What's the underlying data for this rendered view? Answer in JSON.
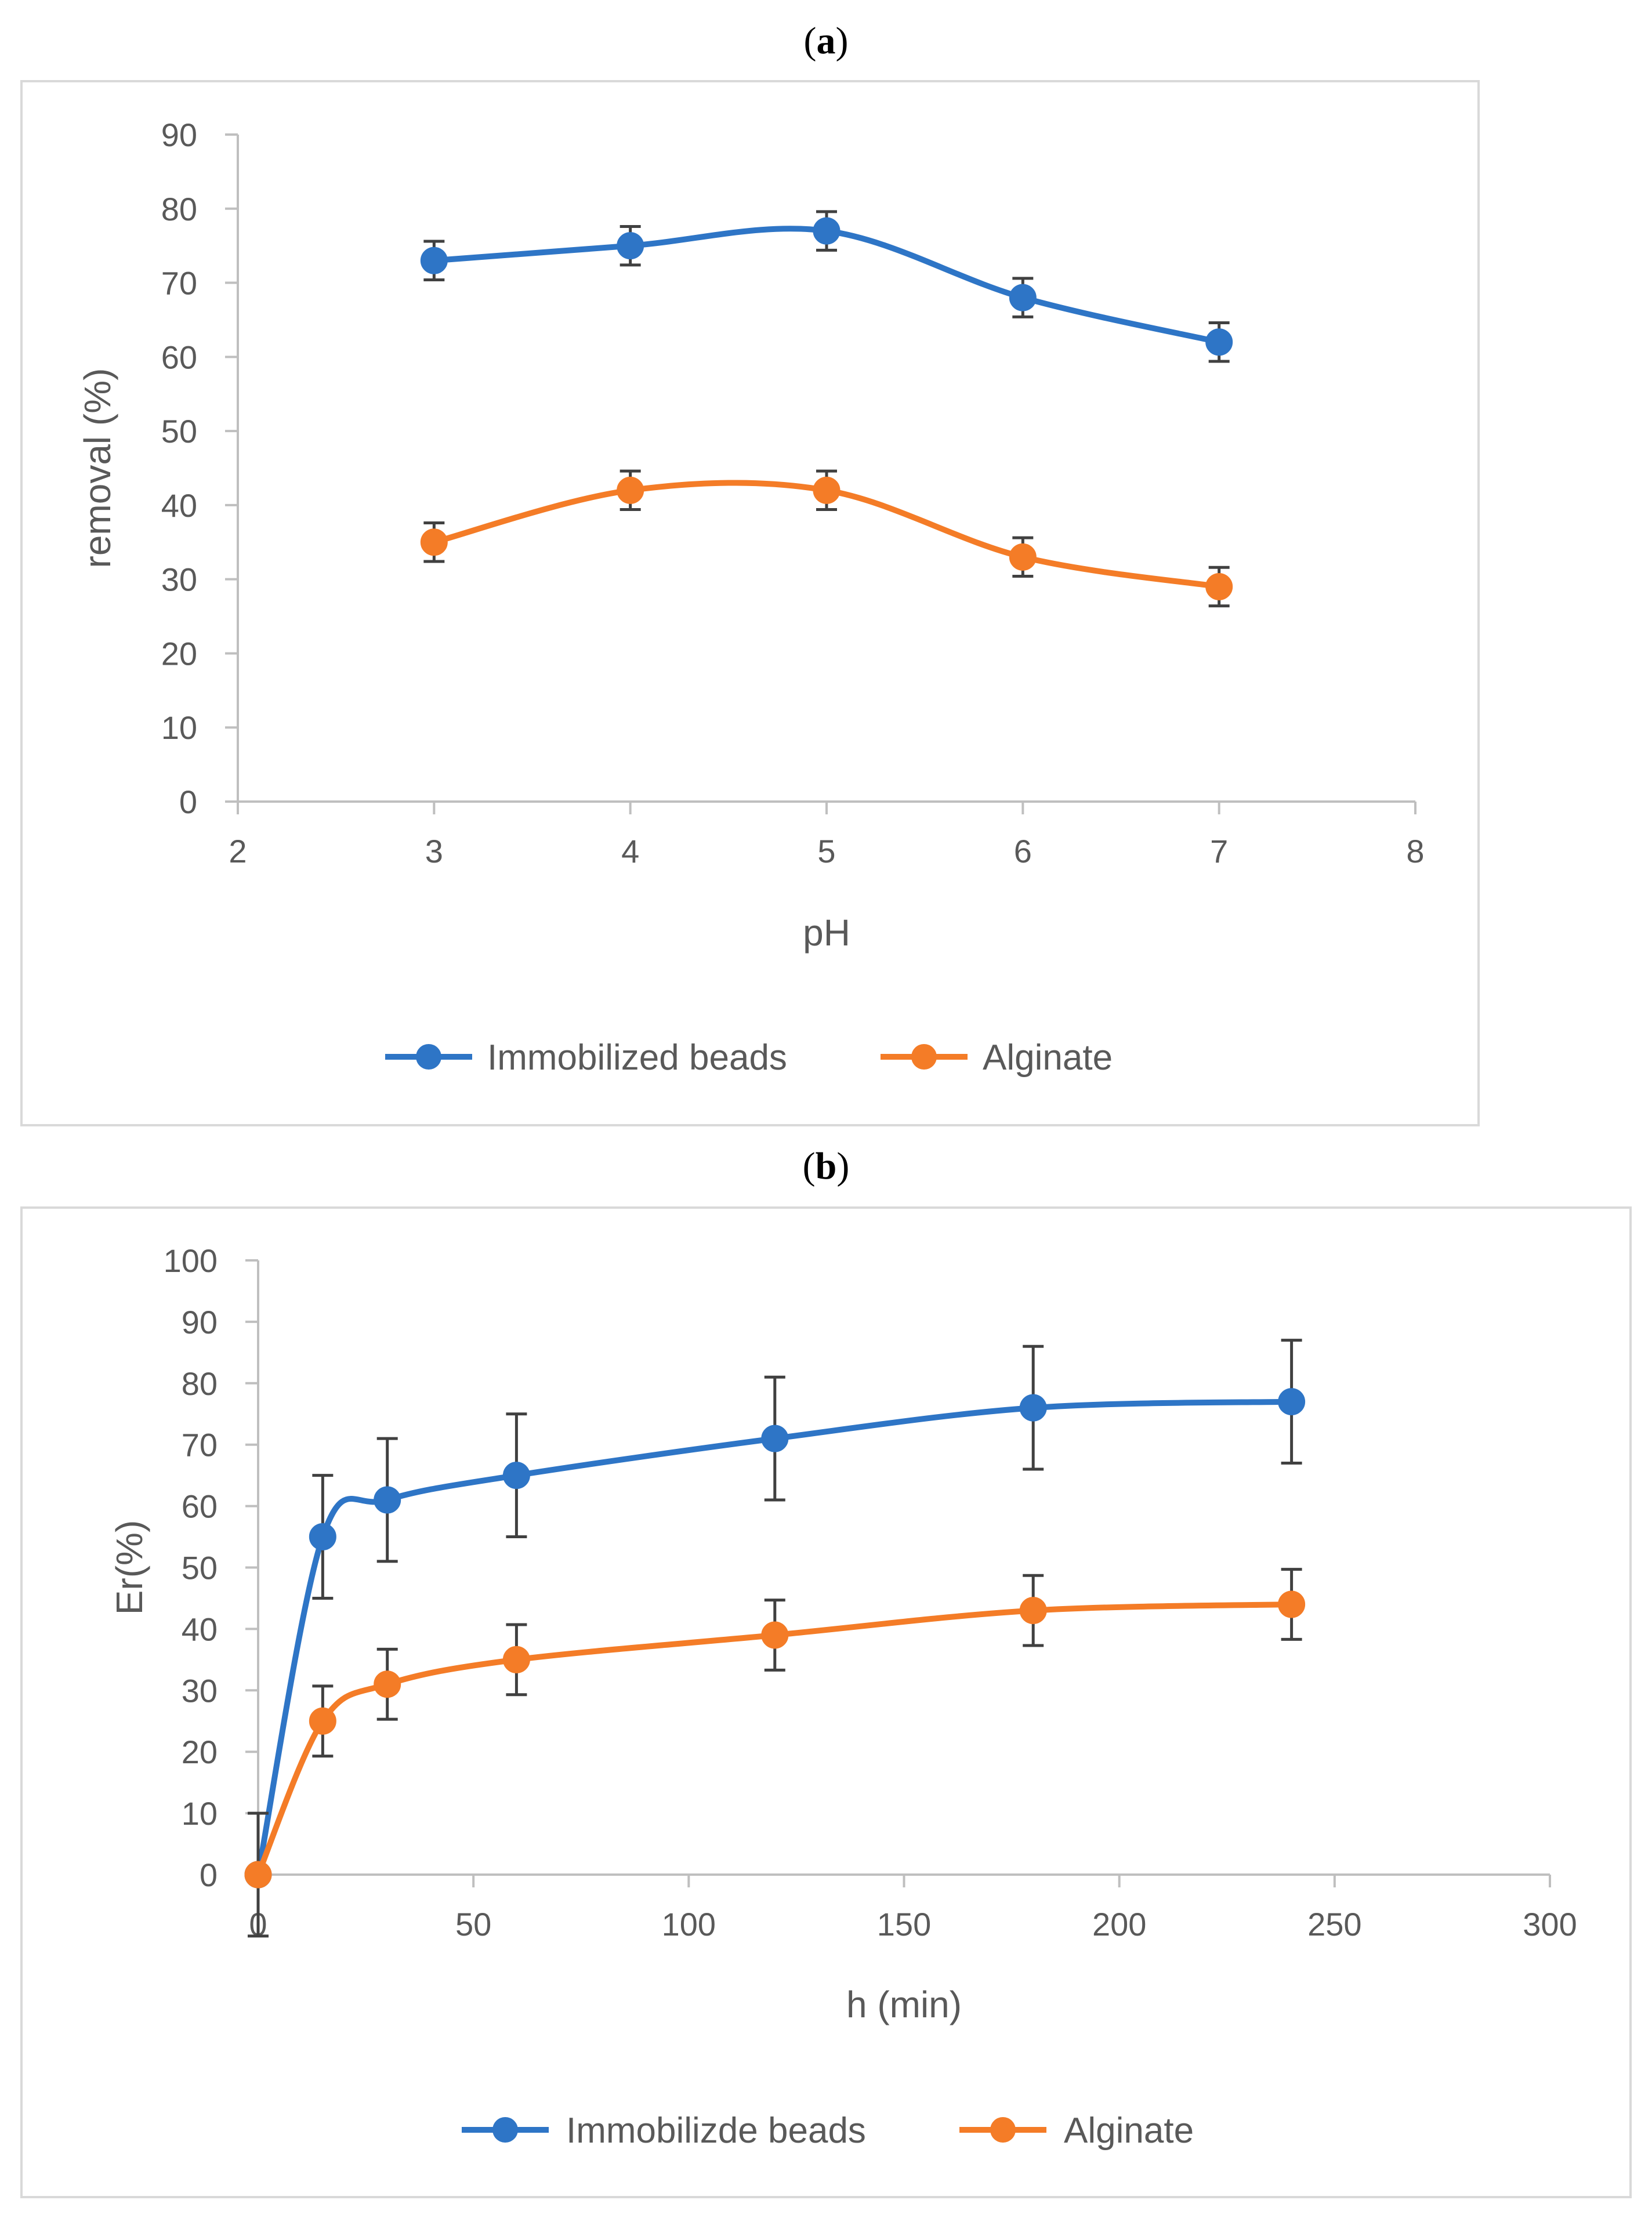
{
  "figure": {
    "panel_labels": [
      {
        "open": "(",
        "letter": "a",
        "close": ")"
      },
      {
        "open": "(",
        "letter": "b",
        "close": ")"
      }
    ]
  },
  "chart_data": [
    {
      "id": "a",
      "type": "line",
      "xlabel": "pH",
      "ylabel": "removal (%)",
      "xlim": [
        2,
        8
      ],
      "ylim": [
        0,
        90
      ],
      "xticks": [
        2,
        3,
        4,
        5,
        6,
        7,
        8
      ],
      "yticks": [
        0,
        10,
        20,
        30,
        40,
        50,
        60,
        70,
        80,
        90
      ],
      "legend_position": "bottom",
      "grid": false,
      "series": [
        {
          "name": "Immobilized beads",
          "color": "#2E75C6",
          "x": [
            3,
            4,
            5,
            6,
            7
          ],
          "y": [
            73,
            75,
            77,
            68,
            62
          ],
          "err": [
            2.6,
            2.6,
            2.6,
            2.6,
            2.6
          ]
        },
        {
          "name": "Alginate",
          "color": "#F47C27",
          "x": [
            3,
            4,
            5,
            6,
            7
          ],
          "y": [
            35,
            42,
            42,
            33,
            29
          ],
          "err": [
            2.6,
            2.6,
            2.6,
            2.6,
            2.6
          ]
        }
      ]
    },
    {
      "id": "b",
      "type": "line",
      "xlabel": "h (min)",
      "ylabel": "Er(%)",
      "xlim": [
        0,
        300
      ],
      "ylim": [
        0,
        100
      ],
      "xticks": [
        0,
        50,
        100,
        150,
        200,
        250,
        300
      ],
      "yticks": [
        0,
        10,
        20,
        30,
        40,
        50,
        60,
        70,
        80,
        90,
        100
      ],
      "legend_position": "bottom",
      "grid": false,
      "series": [
        {
          "name": "Immobilizde beads",
          "color": "#2E75C6",
          "x": [
            0,
            15,
            30,
            60,
            120,
            180,
            240
          ],
          "y": [
            0,
            55,
            61,
            65,
            71,
            76,
            77
          ],
          "err": [
            10,
            10,
            10,
            10,
            10,
            10,
            10
          ]
        },
        {
          "name": "Alginate",
          "color": "#F47C27",
          "x": [
            0,
            15,
            30,
            60,
            120,
            180,
            240
          ],
          "y": [
            0,
            25,
            31,
            35,
            39,
            43,
            44
          ],
          "err": [
            0,
            5.7,
            5.7,
            5.7,
            5.7,
            5.7,
            5.7
          ]
        }
      ]
    }
  ]
}
